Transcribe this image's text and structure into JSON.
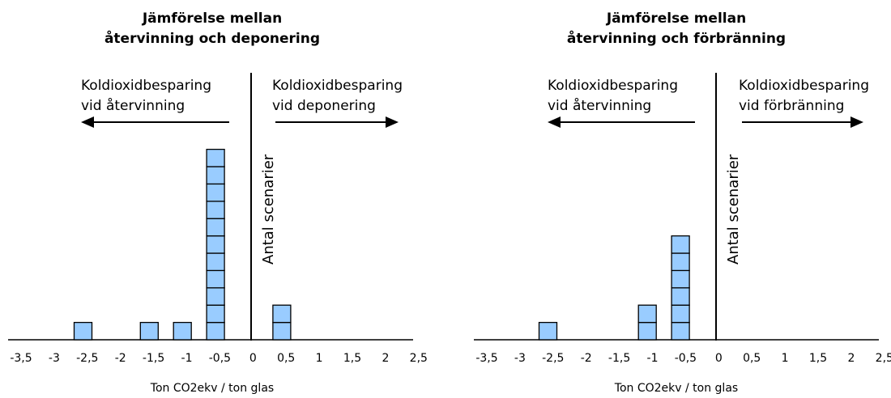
{
  "chart_data": [
    {
      "type": "bar",
      "title_line1": "Jämförelse mellan",
      "title_line2": "återvinning och deponering",
      "left_label_line1": "Koldioxidbesparing",
      "left_label_line2": "vid återvinning",
      "right_label_line1": "Koldioxidbesparing",
      "right_label_line2": "vid deponering",
      "ylabel": "Antal scenarier",
      "xlabel": "Ton CO2ekv / ton glas",
      "tick_labels": [
        "-3,5",
        "-3",
        "-2,5",
        "-2",
        "-1,5",
        "-1",
        "-0,5",
        "0",
        "0,5",
        "1",
        "1,5",
        "2",
        "2,5"
      ],
      "x": [
        -2.5,
        -1.5,
        -1,
        -0.5,
        0.5
      ],
      "values": [
        1,
        1,
        1,
        11,
        2
      ],
      "bar_color": "#99ccff"
    },
    {
      "type": "bar",
      "title_line1": "Jämförelse mellan",
      "title_line2": "återvinning och förbränning",
      "left_label_line1": "Koldioxidbesparing",
      "left_label_line2": "vid återvinning",
      "right_label_line1": "Koldioxidbesparing",
      "right_label_line2": "vid förbränning",
      "ylabel": "Antal scenarier",
      "xlabel": "Ton CO2ekv / ton glas",
      "tick_labels": [
        "-3,5",
        "-3",
        "-2,5",
        "-2",
        "-1,5",
        "-1",
        "-0,5",
        "0",
        "0,5",
        "1",
        "1,5",
        "2",
        "2,5"
      ],
      "x": [
        -2.5,
        -1,
        -0.5
      ],
      "values": [
        1,
        2,
        6
      ],
      "bar_color": "#99ccff"
    }
  ]
}
